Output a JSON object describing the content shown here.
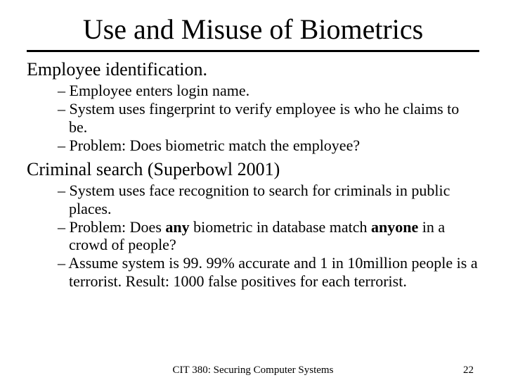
{
  "title": "Use and Misuse of Biometrics",
  "sections": [
    {
      "heading": "Employee identification.",
      "bullets": [
        [
          {
            "t": "Employee enters login name."
          }
        ],
        [
          {
            "t": "System uses fingerprint to verify employee is who he claims to be."
          }
        ],
        [
          {
            "t": "Problem: Does biometric match the employee?"
          }
        ]
      ]
    },
    {
      "heading": "Criminal search (Superbowl 2001)",
      "bullets": [
        [
          {
            "t": "System uses face recognition to search for criminals in public places."
          }
        ],
        [
          {
            "t": "Problem: Does "
          },
          {
            "t": "any",
            "b": true
          },
          {
            "t": " biometric in database match "
          },
          {
            "t": "anyone",
            "b": true
          },
          {
            "t": " in a crowd of people?"
          }
        ],
        [
          {
            "t": "Assume system is 99. 99% accurate and 1 in 10million people is a terrorist.  Result: 1000 false positives for each terrorist."
          }
        ]
      ]
    }
  ],
  "footer": {
    "center": "CIT 380: Securing Computer Systems",
    "page": "22"
  },
  "colors": {
    "text": "#000000",
    "background": "#ffffff",
    "rule": "#000000"
  },
  "fonts": {
    "family": "Times New Roman",
    "title_size_pt": 40,
    "section_size_pt": 26,
    "bullet_size_pt": 22,
    "footer_size_pt": 15
  }
}
